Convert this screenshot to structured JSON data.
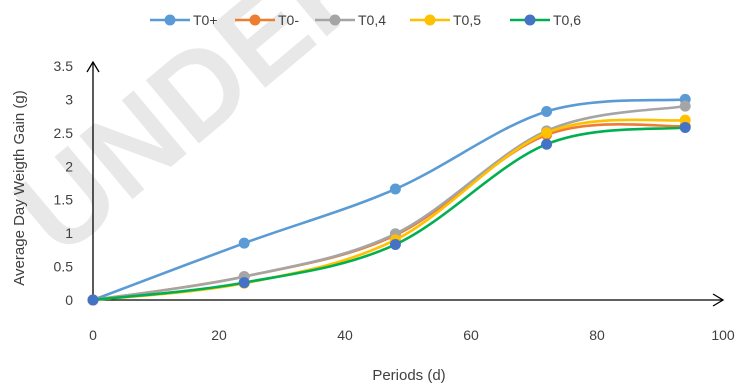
{
  "watermark": "UNDER",
  "chart_data": {
    "type": "line",
    "title": "",
    "xlabel": "Periods (d)",
    "ylabel": "Average Day Weigth Gain (g)",
    "xlim": [
      0,
      100
    ],
    "ylim": [
      0,
      3.5
    ],
    "x_ticks": [
      0,
      20,
      40,
      60,
      80,
      100
    ],
    "x_tick_labels": [
      "0",
      "20",
      "40",
      "60",
      "80",
      "100"
    ],
    "y_ticks": [
      0,
      0.5,
      1,
      1.5,
      2,
      2.5,
      3,
      3.5
    ],
    "y_tick_labels": [
      "0",
      "0.5",
      "1",
      "1.5",
      "2",
      "2.5",
      "3",
      "3.5"
    ],
    "grid": false,
    "smooth": true,
    "legend_position": "top",
    "x": [
      0,
      24,
      48,
      72,
      94
    ],
    "series": [
      {
        "name": "T0+",
        "color": "#5B9BD5",
        "values": [
          0,
          0.85,
          1.66,
          2.82,
          3.0
        ]
      },
      {
        "name": "T0-",
        "color": "#ED7D31",
        "values": [
          0,
          0.35,
          0.97,
          2.47,
          2.6
        ]
      },
      {
        "name": "T0,4",
        "color": "#A5A5A5",
        "values": [
          0,
          0.35,
          0.99,
          2.53,
          2.9
        ]
      },
      {
        "name": "T0,5",
        "color": "#FFC000",
        "values": [
          0,
          0.25,
          0.9,
          2.5,
          2.69
        ]
      },
      {
        "name": "T0,6",
        "color": "#4472C4",
        "line_color": "#00B050",
        "values": [
          0,
          0.26,
          0.83,
          2.33,
          2.58
        ]
      }
    ]
  }
}
